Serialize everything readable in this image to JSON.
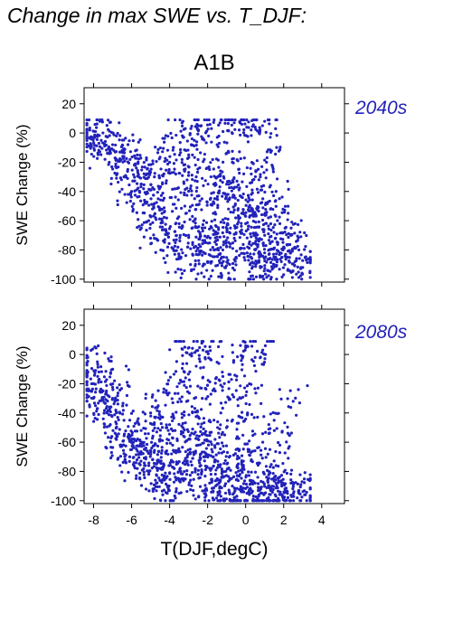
{
  "title": "Change in max SWE vs. T_DJF:",
  "scenario": "A1B",
  "colors": {
    "points": "#2222bb",
    "axis": "#000000",
    "background": "#ffffff"
  },
  "chart_data": [
    {
      "type": "scatter",
      "panel_label": "2040s",
      "xlabel": "",
      "ylabel": "SWE Change (%)",
      "xlim": [
        -8.5,
        5.2
      ],
      "ylim": [
        -102,
        31
      ],
      "x_ticks": [
        -8,
        -6,
        -4,
        -2,
        0,
        2,
        4
      ],
      "x_tick_labels_shown": false,
      "y_ticks": [
        -100,
        -80,
        -60,
        -40,
        -20,
        0,
        20
      ],
      "grid": false,
      "series": [
        {
          "approx_point_count": 1500,
          "points": [
            [
              -8.2,
              2
            ],
            [
              -8.0,
              -3
            ],
            [
              -7.9,
              1
            ],
            [
              -7.6,
              -5
            ],
            [
              -7.2,
              -10
            ],
            [
              -7.4,
              -18
            ],
            [
              -6.8,
              -2
            ],
            [
              -6.5,
              -12
            ],
            [
              -6.2,
              -25
            ],
            [
              -6.0,
              -40
            ],
            [
              -5.8,
              -22
            ],
            [
              -5.5,
              -35
            ],
            [
              -5.3,
              -48
            ],
            [
              -5.1,
              -60
            ],
            [
              -5.0,
              -72
            ],
            [
              -4.8,
              -30
            ],
            [
              -4.6,
              -45
            ],
            [
              -4.4,
              -55
            ],
            [
              -4.2,
              -66
            ],
            [
              -4.1,
              -78
            ],
            [
              -4.0,
              -20
            ],
            [
              -3.8,
              -10
            ],
            [
              -3.6,
              -38
            ],
            [
              -3.5,
              -62
            ],
            [
              -3.4,
              -85
            ],
            [
              -3.2,
              -50
            ],
            [
              -3.0,
              -70
            ],
            [
              -2.9,
              -90
            ],
            [
              -2.8,
              -15
            ],
            [
              -2.6,
              -30
            ],
            [
              -2.5,
              5
            ],
            [
              -2.3,
              -45
            ],
            [
              -2.2,
              -60
            ],
            [
              -2.1,
              -75
            ],
            [
              -2.0,
              -88
            ],
            [
              -1.9,
              -25
            ],
            [
              -1.7,
              -55
            ],
            [
              -1.6,
              -68
            ],
            [
              -1.5,
              -8
            ],
            [
              -1.4,
              -40
            ],
            [
              -1.2,
              -80
            ],
            [
              -1.1,
              -92
            ],
            [
              -1.0,
              -35
            ],
            [
              -0.9,
              -52
            ],
            [
              -0.8,
              -65
            ],
            [
              -0.7,
              -20
            ],
            [
              -0.6,
              -72
            ],
            [
              -0.5,
              -85
            ],
            [
              -0.4,
              -46
            ],
            [
              -0.3,
              -58
            ],
            [
              -0.2,
              6
            ],
            [
              -0.1,
              -28
            ],
            [
              0.0,
              -62
            ],
            [
              0.1,
              -78
            ],
            [
              0.2,
              -95
            ],
            [
              0.3,
              -42
            ],
            [
              0.4,
              -55
            ],
            [
              0.5,
              -70
            ],
            [
              0.6,
              -88
            ],
            [
              0.7,
              -32
            ],
            [
              0.8,
              -48
            ],
            [
              0.9,
              -66
            ],
            [
              1.0,
              -82
            ],
            [
              1.1,
              -20
            ],
            [
              1.2,
              -58
            ],
            [
              1.3,
              -75
            ],
            [
              1.5,
              -90
            ],
            [
              1.6,
              -40
            ],
            [
              1.8,
              -62
            ],
            [
              2.0,
              -78
            ],
            [
              2.2,
              -85
            ],
            [
              2.4,
              -70
            ],
            [
              2.6,
              -88
            ],
            [
              2.8,
              -80
            ],
            [
              3.0,
              -92
            ],
            [
              -3.3,
              8
            ],
            [
              -2.7,
              -5
            ],
            [
              -1.8,
              3
            ],
            [
              -0.6,
              7
            ],
            [
              0.5,
              4
            ],
            [
              1.0,
              8
            ],
            [
              -7.0,
              -8
            ],
            [
              -6.4,
              -30
            ],
            [
              -5.7,
              -15
            ],
            [
              -4.9,
              -52
            ],
            [
              -4.3,
              -28
            ],
            [
              -3.7,
              -75
            ],
            [
              -2.4,
              -82
            ],
            [
              -1.3,
              -96
            ],
            [
              0.9,
              -98
            ]
          ]
        }
      ]
    },
    {
      "type": "scatter",
      "panel_label": "2080s",
      "xlabel": "T(DJF,degC)",
      "ylabel": "SWE Change (%)",
      "xlim": [
        -8.5,
        5.2
      ],
      "ylim": [
        -102,
        31
      ],
      "x_ticks": [
        -8,
        -6,
        -4,
        -2,
        0,
        2,
        4
      ],
      "x_tick_labels_shown": true,
      "y_ticks": [
        -100,
        -80,
        -60,
        -40,
        -20,
        0,
        20
      ],
      "grid": false,
      "series": [
        {
          "approx_point_count": 1500,
          "points": [
            [
              -8.3,
              -12
            ],
            [
              -8.1,
              -20
            ],
            [
              -7.8,
              -5
            ],
            [
              -7.5,
              -25
            ],
            [
              -7.3,
              -40
            ],
            [
              -7.0,
              -30
            ],
            [
              -6.8,
              -55
            ],
            [
              -6.6,
              -62
            ],
            [
              -6.4,
              -45
            ],
            [
              -6.1,
              -70
            ],
            [
              -5.9,
              -60
            ],
            [
              -5.7,
              -78
            ],
            [
              -5.5,
              -52
            ],
            [
              -5.3,
              -65
            ],
            [
              -5.1,
              -82
            ],
            [
              -4.9,
              -72
            ],
            [
              -4.7,
              -88
            ],
            [
              -4.5,
              -58
            ],
            [
              -4.3,
              -76
            ],
            [
              -4.1,
              -90
            ],
            [
              -3.9,
              -68
            ],
            [
              -3.7,
              -84
            ],
            [
              -3.5,
              -95
            ],
            [
              -3.3,
              -50
            ],
            [
              -3.1,
              -74
            ],
            [
              -2.9,
              -86
            ],
            [
              -2.7,
              -30
            ],
            [
              -2.5,
              -62
            ],
            [
              -2.3,
              -80
            ],
            [
              -2.1,
              -92
            ],
            [
              -1.9,
              -45
            ],
            [
              -1.7,
              -70
            ],
            [
              -1.5,
              -85
            ],
            [
              -1.3,
              -97
            ],
            [
              -1.1,
              -55
            ],
            [
              -0.9,
              -78
            ],
            [
              -0.7,
              -90
            ],
            [
              -0.5,
              -65
            ],
            [
              -0.3,
              -82
            ],
            [
              -0.1,
              -94
            ],
            [
              0.1,
              -40
            ],
            [
              0.3,
              -72
            ],
            [
              0.5,
              -88
            ],
            [
              0.7,
              -96
            ],
            [
              0.9,
              -60
            ],
            [
              1.1,
              -84
            ],
            [
              1.3,
              -92
            ],
            [
              1.6,
              -76
            ],
            [
              1.9,
              -90
            ],
            [
              2.2,
              -95
            ],
            [
              2.5,
              -88
            ],
            [
              2.8,
              -93
            ],
            [
              3.1,
              -96
            ],
            [
              -3.2,
              5
            ],
            [
              -2.6,
              -8
            ],
            [
              -2.0,
              2
            ],
            [
              -1.2,
              -15
            ],
            [
              0.0,
              6
            ],
            [
              0.5,
              -2
            ],
            [
              0.9,
              3
            ],
            [
              -1.6,
              -25
            ],
            [
              -0.4,
              -35
            ],
            [
              0.2,
              -20
            ],
            [
              1.5,
              -45
            ],
            [
              2.5,
              -32
            ],
            [
              -6.0,
              -65
            ],
            [
              -5.0,
              -40
            ],
            [
              -4.0,
              -48
            ],
            [
              -3.0,
              -58
            ],
            [
              -2.2,
              -70
            ],
            [
              -1.4,
              -88
            ],
            [
              -0.6,
              -98
            ],
            [
              0.4,
              -99
            ],
            [
              1.2,
              -98
            ],
            [
              2.0,
              -99
            ],
            [
              -7.9,
              -35
            ],
            [
              -6.9,
              -18
            ],
            [
              -4.6,
              -35
            ],
            [
              -3.6,
              -22
            ],
            [
              1.8,
              -62
            ]
          ]
        }
      ]
    }
  ]
}
